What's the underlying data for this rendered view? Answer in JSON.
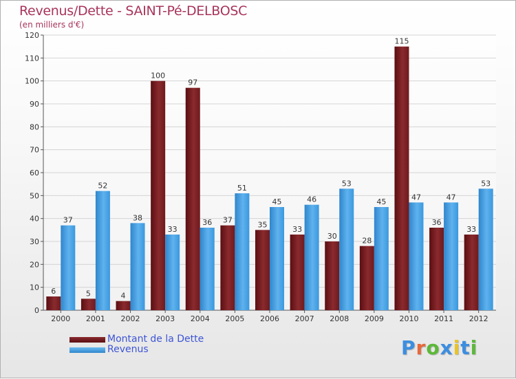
{
  "colors": {
    "dette": "#7a1e22",
    "revenus": "#3c9be0",
    "title": "#a8345a",
    "legend_text": "#3d55d6"
  },
  "logo": {
    "text": "Proxiti",
    "letter_colors": [
      "#3c8ee0",
      "#e8683a",
      "#5cb83a",
      "#3c8ee0",
      "#e8c42a",
      "#3c8ee0",
      "#5cb83a"
    ]
  },
  "chart_data": {
    "type": "bar",
    "title": "Revenus/Dette - SAINT-Pé-DELBOSC",
    "subtitle": "(en milliers d'€)",
    "xlabel": "",
    "ylabel": "",
    "ylim": [
      0,
      120
    ],
    "yticks": [
      0,
      10,
      20,
      30,
      40,
      50,
      60,
      70,
      80,
      90,
      100,
      110,
      120
    ],
    "grid": true,
    "legend_position": "bottom-left",
    "categories": [
      "2000",
      "2001",
      "2002",
      "2003",
      "2004",
      "2005",
      "2006",
      "2007",
      "2008",
      "2009",
      "2010",
      "2011",
      "2012"
    ],
    "series": [
      {
        "name": "Montant de la Dette",
        "color": "#7a1e22",
        "values": [
          6,
          5,
          4,
          100,
          97,
          37,
          35,
          33,
          30,
          28,
          115,
          36,
          33
        ]
      },
      {
        "name": "Revenus",
        "color": "#3c9be0",
        "values": [
          37,
          52,
          38,
          33,
          36,
          51,
          45,
          46,
          53,
          45,
          47,
          47,
          53
        ]
      }
    ]
  }
}
